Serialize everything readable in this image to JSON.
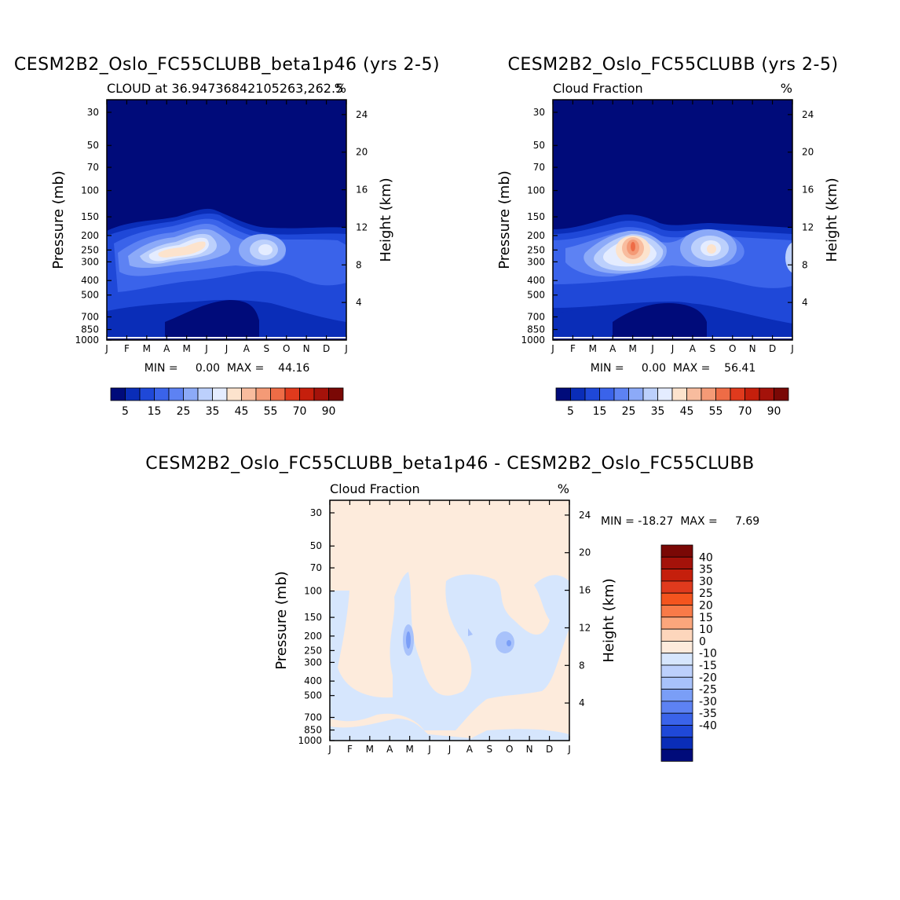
{
  "levels": [
    "-40",
    "-35",
    "-30",
    "-25",
    "-20",
    "-15",
    "-10",
    "0",
    "10",
    "15",
    "20",
    "25",
    "30",
    "35",
    "40"
  ],
  "panels": [
    {
      "title": "CESM2B2_Oslo_FC55CLUBB_beta1p46 (yrs 2-5)",
      "left_text": "CLOUD at 36.94736842105263,262.5",
      "right_text": "%",
      "min_max": "MIN =     0.00  MAX =    44.16",
      "ylabel": "Pressure (mb)",
      "ylabel_right": "Height (km)",
      "months": [
        "J",
        "F",
        "M",
        "A",
        "M",
        "J",
        "J",
        "A",
        "S",
        "O",
        "N",
        "D",
        "J"
      ],
      "pressure_ticks": [
        "30",
        "50",
        "70",
        "100",
        "150",
        "200",
        "250",
        "300",
        "400",
        "500",
        "700",
        "850",
        "1000"
      ],
      "height_ticks": [
        "24",
        "20",
        "16",
        "12",
        "8",
        "4"
      ],
      "colorbar_labels": [
        "5",
        "15",
        "25",
        "35",
        "45",
        "55",
        "70",
        "90"
      ]
    },
    {
      "title": "CESM2B2_Oslo_FC55CLUBB (yrs 2-5)",
      "left_text": "Cloud Fraction",
      "right_text": "%",
      "min_max": "MIN =     0.00  MAX =    56.41",
      "ylabel": "Pressure (mb)",
      "ylabel_right": "Height (km)",
      "months": [
        "J",
        "F",
        "M",
        "A",
        "M",
        "J",
        "J",
        "A",
        "S",
        "O",
        "N",
        "D",
        "J"
      ],
      "pressure_ticks": [
        "30",
        "50",
        "70",
        "100",
        "150",
        "200",
        "250",
        "300",
        "400",
        "500",
        "700",
        "850",
        "1000"
      ],
      "height_ticks": [
        "24",
        "20",
        "16",
        "12",
        "8",
        "4"
      ],
      "colorbar_labels": [
        "5",
        "15",
        "25",
        "35",
        "45",
        "55",
        "70",
        "90"
      ]
    },
    {
      "title": "CESM2B2_Oslo_FC55CLUBB_beta1p46 - CESM2B2_Oslo_FC55CLUBB",
      "left_text": "Cloud Fraction",
      "right_text": "%",
      "min_max": "MIN = -18.27  MAX =     7.69",
      "ylabel": "Pressure (mb)",
      "ylabel_right": "Height (km)",
      "months": [
        "J",
        "F",
        "M",
        "A",
        "M",
        "J",
        "J",
        "A",
        "S",
        "O",
        "N",
        "D",
        "J"
      ],
      "pressure_ticks": [
        "30",
        "50",
        "70",
        "100",
        "150",
        "200",
        "250",
        "300",
        "400",
        "500",
        "700",
        "850",
        "1000"
      ],
      "height_ticks": [
        "24",
        "20",
        "16",
        "12",
        "8",
        "4"
      ],
      "colorbar_labels": [
        "40",
        "35",
        "30",
        "25",
        "20",
        "15",
        "10",
        "0",
        "-10",
        "-15",
        "-20",
        "-25",
        "-30",
        "-35",
        "-40"
      ]
    }
  ],
  "chart_data": [
    {
      "type": "heatmap",
      "title": "CESM2B2_Oslo_FC55CLUBB_beta1p46 (yrs 2-5)",
      "xlabel": "",
      "ylabel": "Pressure (mb)",
      "x_categories": [
        "J",
        "F",
        "M",
        "A",
        "M",
        "J",
        "J",
        "A",
        "S",
        "O",
        "N",
        "D",
        "J"
      ],
      "y_pressure_mb": [
        30,
        50,
        70,
        100,
        150,
        200,
        250,
        300,
        400,
        500,
        700,
        850,
        1000
      ],
      "min": 0.0,
      "max": 44.16,
      "features": [
        {
          "month": "A-M",
          "pressure_mb": 250,
          "value": 42
        },
        {
          "month": "J",
          "pressure_mb": 200,
          "value": 44.16
        },
        {
          "month": "S",
          "pressure_mb": 250,
          "value": 38
        }
      ]
    },
    {
      "type": "heatmap",
      "title": "CESM2B2_Oslo_FC55CLUBB (yrs 2-5)",
      "xlabel": "",
      "ylabel": "Pressure (mb)",
      "x_categories": [
        "J",
        "F",
        "M",
        "A",
        "M",
        "J",
        "J",
        "A",
        "S",
        "O",
        "N",
        "D",
        "J"
      ],
      "y_pressure_mb": [
        30,
        50,
        70,
        100,
        150,
        200,
        250,
        300,
        400,
        500,
        700,
        850,
        1000
      ],
      "min": 0.0,
      "max": 56.41,
      "features": [
        {
          "month": "M",
          "pressure_mb": 250,
          "value": 56.41
        },
        {
          "month": "S",
          "pressure_mb": 250,
          "value": 42
        }
      ]
    },
    {
      "type": "heatmap",
      "title": "CESM2B2_Oslo_FC55CLUBB_beta1p46 - CESM2B2_Oslo_FC55CLUBB",
      "xlabel": "",
      "ylabel": "Pressure (mb)",
      "x_categories": [
        "J",
        "F",
        "M",
        "A",
        "M",
        "J",
        "J",
        "A",
        "S",
        "O",
        "N",
        "D",
        "J"
      ],
      "y_pressure_mb": [
        30,
        50,
        70,
        100,
        150,
        200,
        250,
        300,
        400,
        500,
        700,
        850,
        1000
      ],
      "min": -18.27,
      "max": 7.69,
      "features": [
        {
          "month": "M",
          "pressure_mb": 250,
          "value": -18.27
        },
        {
          "month": "O",
          "pressure_mb": 250,
          "value": -15
        }
      ]
    }
  ]
}
